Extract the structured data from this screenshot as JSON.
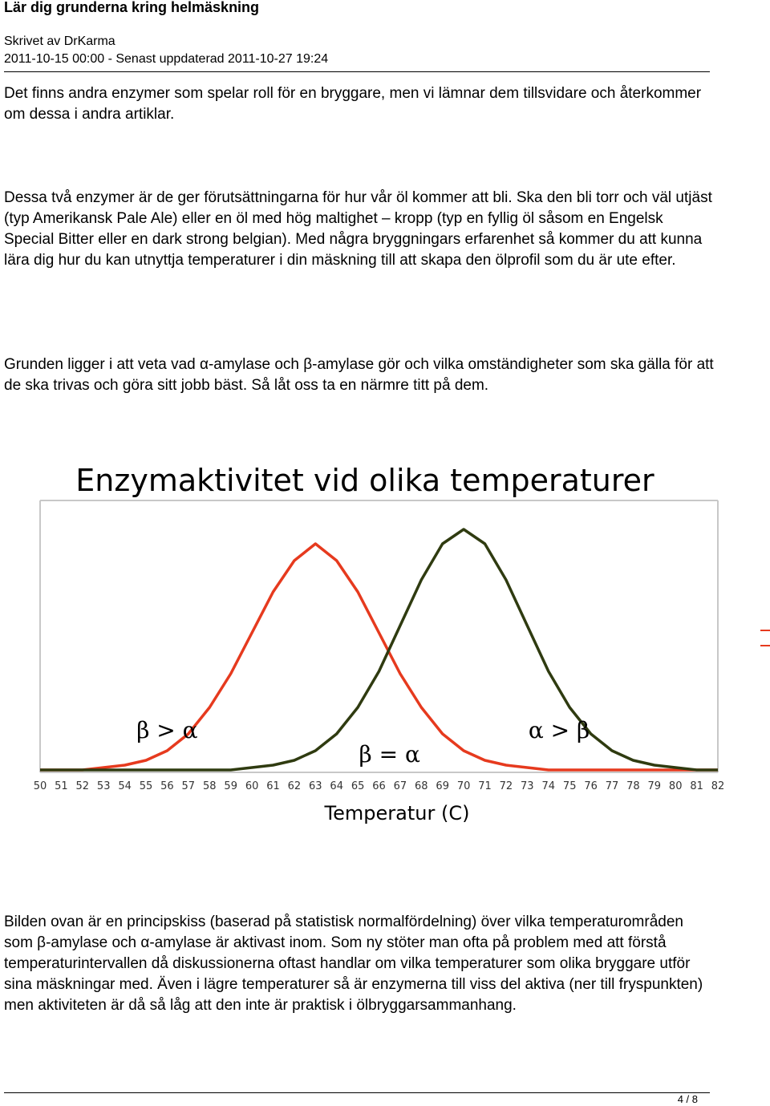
{
  "doc": {
    "title": "Lär dig grunderna kring helmäskning",
    "author": "Skrivet av DrKarma",
    "dates": "2011-10-15 00:00 - Senast uppdaterad 2011-10-27 19:24",
    "paragraphs": [
      "Det finns andra enzymer som spelar roll för en bryggare, men vi lämnar dem tillsvidare och återkommer om dessa i andra artiklar.",
      "Dessa två enzymer är de ger förutsättningarna för hur vår öl kommer att bli. Ska den bli torr och väl utjäst (typ Amerikansk Pale Ale) eller en öl med hög maltighet – kropp (typ en fyllig öl såsom en Engelsk Special Bitter eller en dark strong belgian). Med några bryggningars erfarenhet så kommer du att kunna lära dig hur du kan utnyttja temperaturer i din mäskning till att skapa den ölprofil som du är ute efter.",
      "Grunden ligger i att veta vad α-amylase och β-amylase gör och vilka omständigheter som ska gälla för att de ska trivas och göra sitt jobb bäst. Så låt oss ta en närmre titt på dem.",
      "Bilden ovan är en principskiss (baserad på statistisk normalfördelning) över vilka temperaturområden som β-amylase och α-amylase är aktivast inom. Som ny stöter man ofta på problem med att förstå temperaturintervallen då diskussionerna oftast handlar om vilka temperaturer som olika bryggare utför sina mäskningar med. Även i lägre temperaturer så är enzymerna till viss del aktiva (ner till fryspunkten) men aktiviteten är då så låg att den inte är praktisk i ölbryggarsammanhang."
    ],
    "page_number": "4 / 8"
  },
  "chart_data": {
    "type": "line",
    "title": "Enzymaktivitet vid olika temperaturer",
    "xlabel": "Temperatur (C)",
    "ylabel": "",
    "x": [
      50,
      51,
      52,
      53,
      54,
      55,
      56,
      57,
      58,
      59,
      60,
      61,
      62,
      63,
      64,
      65,
      66,
      67,
      68,
      69,
      70,
      71,
      72,
      73,
      74,
      75,
      76,
      77,
      78,
      79,
      80,
      81,
      82
    ],
    "xlim": [
      50,
      82
    ],
    "ylim": [
      0,
      1
    ],
    "series": [
      {
        "color": "#e63a1e",
        "values": [
          0.0,
          0.0,
          0.0,
          0.01,
          0.02,
          0.04,
          0.08,
          0.15,
          0.26,
          0.4,
          0.57,
          0.74,
          0.87,
          0.94,
          0.87,
          0.74,
          0.57,
          0.4,
          0.26,
          0.15,
          0.08,
          0.04,
          0.02,
          0.01,
          0.0,
          0.0,
          0.0,
          0.0,
          0.0,
          0.0,
          0.0,
          0.0,
          0.0
        ]
      },
      {
        "color": "#2f3b10",
        "values": [
          0.0,
          0.0,
          0.0,
          0.0,
          0.0,
          0.0,
          0.0,
          0.0,
          0.0,
          0.0,
          0.01,
          0.02,
          0.04,
          0.08,
          0.15,
          0.26,
          0.41,
          0.6,
          0.79,
          0.94,
          1.0,
          0.94,
          0.79,
          0.6,
          0.41,
          0.26,
          0.15,
          0.08,
          0.04,
          0.02,
          0.01,
          0.0,
          0.0
        ]
      }
    ],
    "annotations": [
      {
        "text": "β > α",
        "x": 56
      },
      {
        "text": "β = α",
        "x": 66.5
      },
      {
        "text": "α > β",
        "x": 74.5
      }
    ],
    "grid": false
  }
}
